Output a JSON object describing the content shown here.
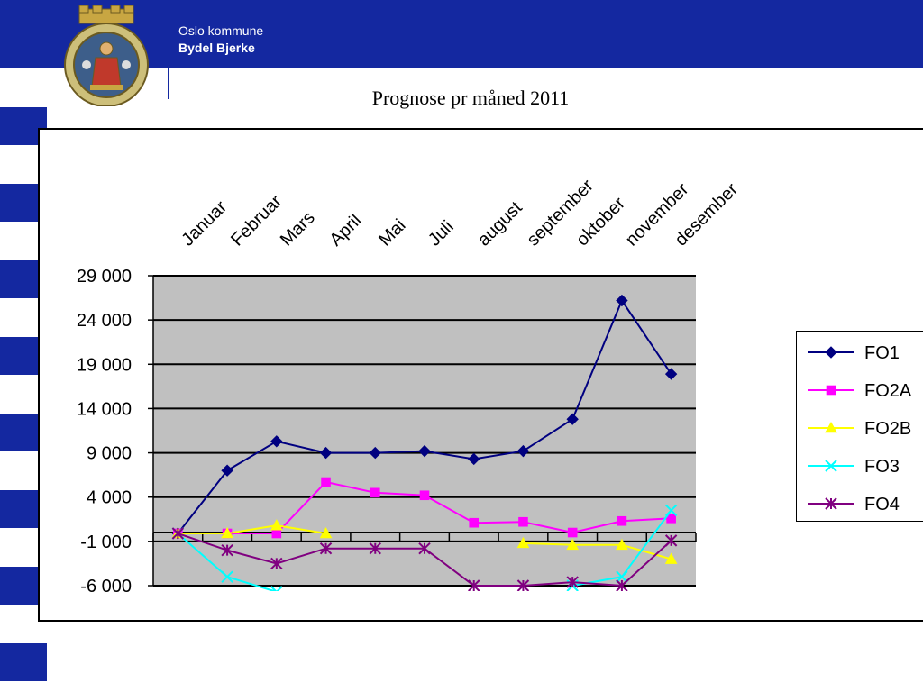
{
  "header": {
    "org_name": "Oslo kommune",
    "district": "Bydel Bjerke",
    "brand_color": "#1428a0"
  },
  "logo": {
    "icon": "oslo-coat-of-arms-icon"
  },
  "slide": {
    "title": "Prognose pr måned 2011"
  },
  "chart_data": {
    "type": "line",
    "title": "",
    "categories": [
      "Januar",
      "Februar",
      "Mars",
      "April",
      "Mai",
      "Juli",
      "august",
      "september",
      "oktober",
      "november",
      "desember"
    ],
    "ylim": [
      -6000,
      29000
    ],
    "yticks": [
      29000,
      24000,
      19000,
      14000,
      9000,
      4000,
      -1000,
      -6000
    ],
    "ytick_labels": [
      "29 000",
      "24 000",
      "19 000",
      "14 000",
      "9 000",
      "4 000",
      "-1 000",
      "-6 000"
    ],
    "grid": true,
    "plot_background": "#c0c0c0",
    "legend_position": "right",
    "series": [
      {
        "name": "FO1",
        "color": "#000080",
        "marker": "diamond",
        "values": [
          -100,
          7000,
          10300,
          9000,
          9000,
          9200,
          8300,
          9200,
          12800,
          26200,
          17900
        ]
      },
      {
        "name": "FO2A",
        "color": "#ff00ff",
        "marker": "square",
        "values": [
          -100,
          -100,
          -100,
          5700,
          4500,
          4200,
          1100,
          1200,
          0,
          1300,
          1600
        ]
      },
      {
        "name": "FO2B",
        "color": "#ffff00",
        "marker": "triangle",
        "values": [
          -100,
          -100,
          800,
          -100,
          null,
          null,
          null,
          -1200,
          -1400,
          -1400,
          -3000
        ]
      },
      {
        "name": "FO3",
        "color": "#00ffff",
        "marker": "x",
        "values": [
          -100,
          -5000,
          -6700,
          null,
          null,
          null,
          null,
          null,
          -6000,
          -5000,
          2500
        ]
      },
      {
        "name": "FO4",
        "color": "#800080",
        "marker": "star",
        "values": [
          -100,
          -2000,
          -3500,
          -1800,
          -1800,
          -1800,
          -6000,
          -6000,
          -5600,
          -6000,
          -900
        ]
      }
    ]
  }
}
